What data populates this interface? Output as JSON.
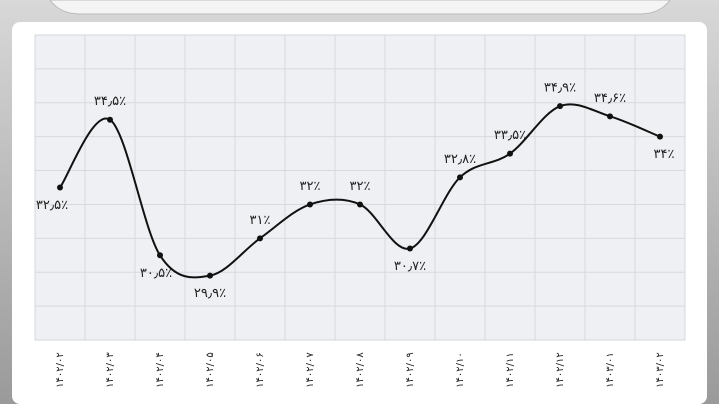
{
  "chart_data": {
    "type": "line",
    "categories": [
      "۱۴۰۲/۰۲",
      "۱۴۰۲/۰۳",
      "۱۴۰۲/۰۴",
      "۱۴۰۲/۰۵",
      "۱۴۰۲/۰۶",
      "۱۴۰۲/۰۷",
      "۱۴۰۲/۰۸",
      "۱۴۰۲/۰۹",
      "۱۴۰۲/۱۰",
      "۱۴۰۲/۱۱",
      "۱۴۰۲/۱۲",
      "۱۴۰۳/۰۱",
      "۱۴۰۳/۰۲"
    ],
    "values": [
      32.5,
      34.5,
      30.5,
      29.9,
      31,
      32,
      32,
      30.7,
      32.8,
      33.5,
      34.9,
      34.6,
      34
    ],
    "value_labels": [
      "۳۲٫۵٪",
      "۳۴٫۵٪",
      "۳۰٫۵٪",
      "۲۹٫۹٪",
      "۳۱٪",
      "۳۲٪",
      "۳۲٪",
      "۳۰٫۷٪",
      "۳۲٫۸٪",
      "۳۳٫۵٪",
      "۳۴٫۹٪",
      "۳۴٫۶٪",
      "۳۴٪"
    ],
    "color": "#111111",
    "ylim": [
      28,
      37
    ],
    "grid": true
  }
}
